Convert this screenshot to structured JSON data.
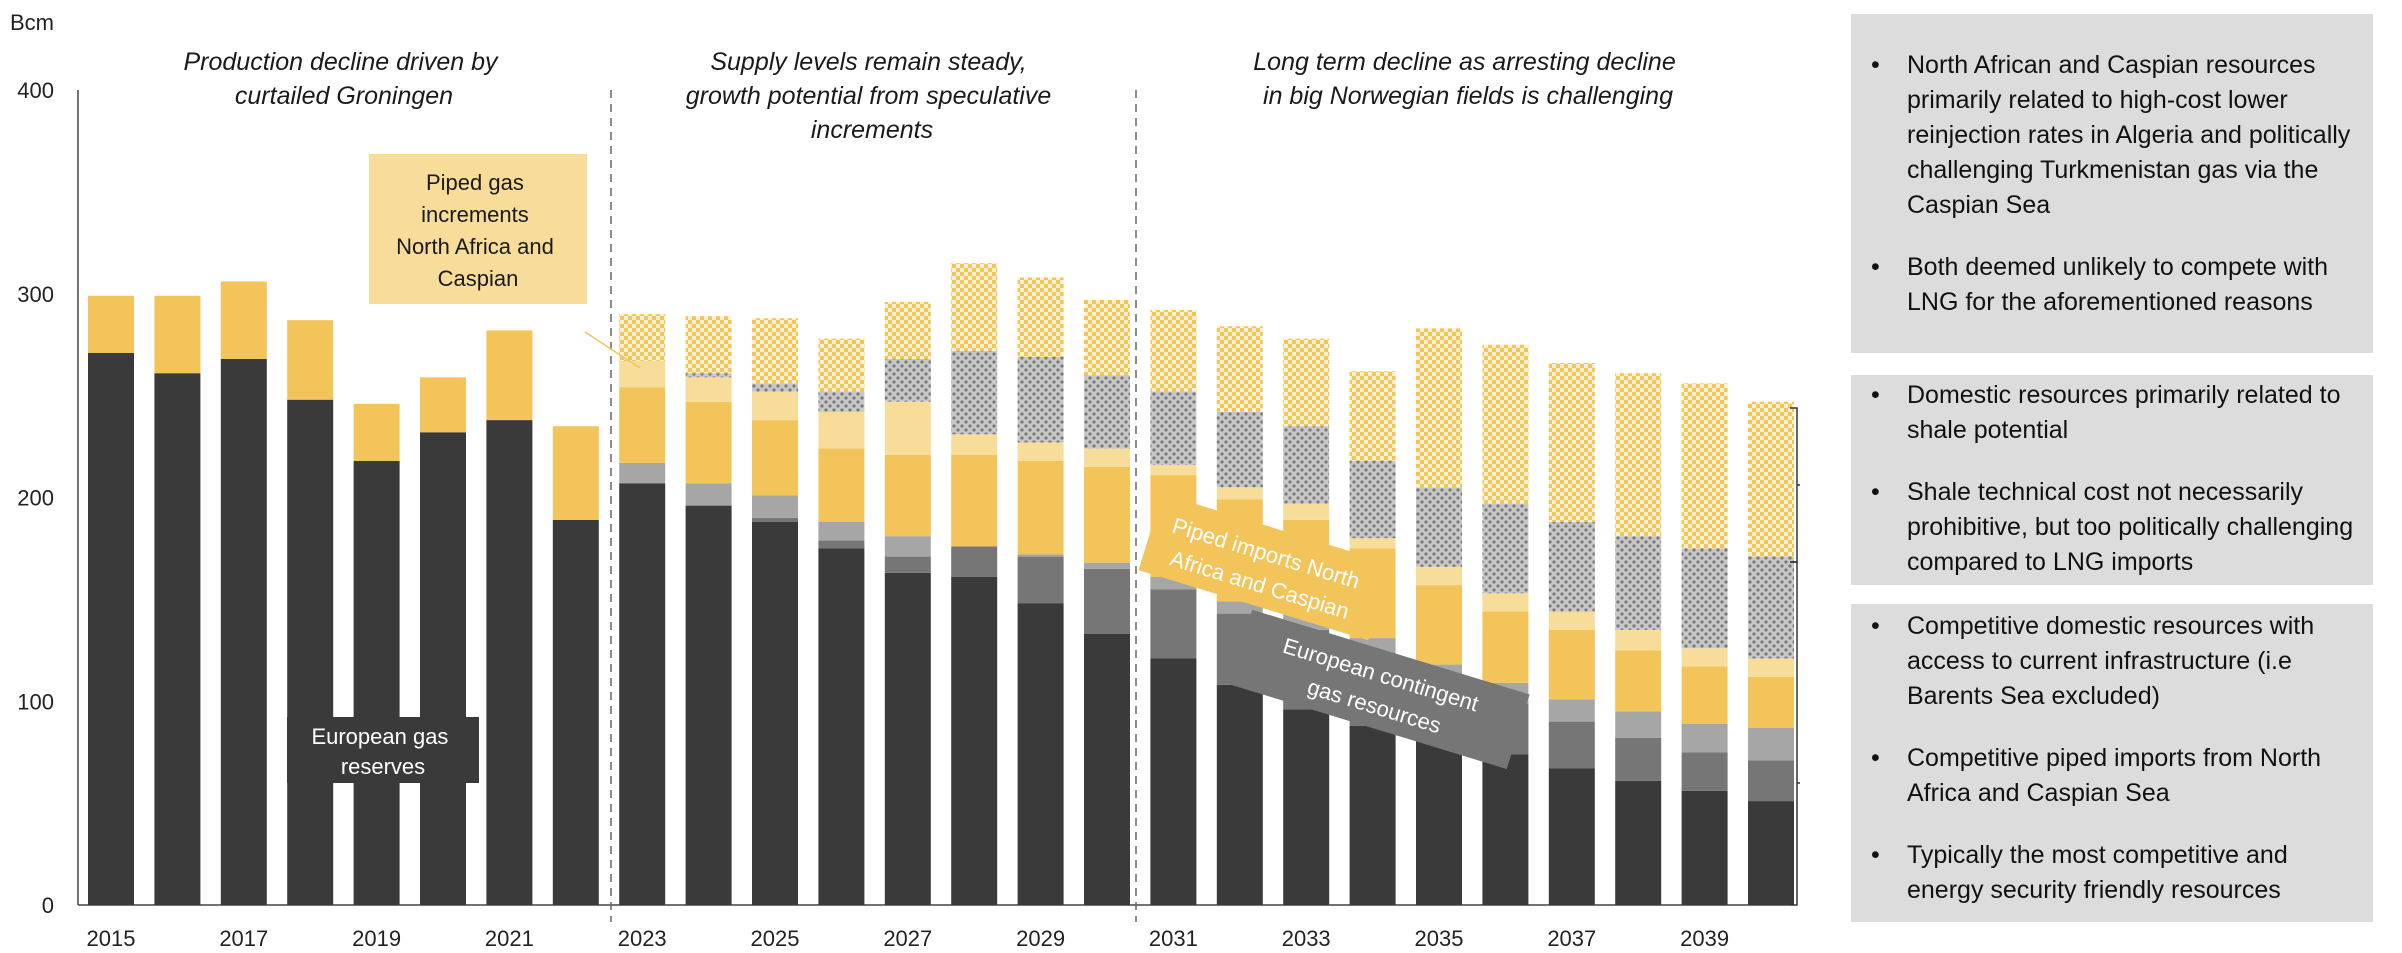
{
  "chart_data": {
    "type": "bar",
    "stacked": true,
    "ylabel": "Bcm",
    "ylim": [
      0,
      400
    ],
    "yticks": [
      0,
      100,
      200,
      300,
      400
    ],
    "xtick_labels": [
      "2015",
      "2017",
      "2019",
      "2021",
      "2023",
      "2025",
      "2027",
      "2029",
      "2031",
      "2033",
      "2035",
      "2037",
      "2039"
    ],
    "categories": [
      "2015",
      "2016",
      "2017",
      "2018",
      "2019",
      "2020",
      "2021",
      "2022",
      "2023",
      "2024",
      "2025",
      "2026",
      "2027",
      "2028",
      "2029",
      "2030",
      "2031",
      "2032",
      "2033",
      "2034",
      "2035",
      "2036",
      "2037",
      "2038",
      "2039",
      "2040"
    ],
    "series": [
      {
        "name": "European gas reserves",
        "color": "#3a3a3a",
        "pattern": "solid",
        "values": [
          271,
          261,
          268,
          248,
          218,
          232,
          238,
          189,
          207,
          196,
          188,
          175,
          163,
          161,
          148,
          133,
          121,
          108,
          96,
          88,
          81,
          74,
          67,
          61,
          56,
          51
        ]
      },
      {
        "name": "European contingent gas resources",
        "color": "#767676",
        "pattern": "solid",
        "values": [
          0,
          0,
          0,
          0,
          0,
          0,
          0,
          0,
          0,
          0,
          2,
          4,
          8,
          15,
          23,
          32,
          34,
          35,
          39,
          34,
          28,
          25,
          23,
          21,
          19,
          20
        ]
      },
      {
        "name": "",
        "color": "#a6a6a6",
        "pattern": "solid",
        "values": [
          0,
          0,
          0,
          0,
          0,
          0,
          0,
          0,
          10,
          11,
          11,
          9,
          10,
          0,
          1,
          3,
          6,
          6,
          9,
          9,
          9,
          10,
          11,
          13,
          14,
          16
        ]
      },
      {
        "name": "Piped imports North Africa and Caspian",
        "color": "#f2c45a",
        "pattern": "solid",
        "values": [
          28,
          38,
          38,
          39,
          28,
          27,
          44,
          46,
          37,
          40,
          37,
          36,
          40,
          45,
          46,
          47,
          50,
          50,
          45,
          44,
          39,
          35,
          34,
          30,
          28,
          25
        ]
      },
      {
        "name": "",
        "color": "#f8dc9a",
        "pattern": "solid",
        "values": [
          0,
          0,
          0,
          0,
          0,
          0,
          0,
          0,
          13,
          12,
          14,
          18,
          26,
          10,
          9,
          9,
          5,
          6,
          8,
          5,
          9,
          9,
          9,
          10,
          9,
          9
        ]
      },
      {
        "name": "",
        "color": "#a6a6a6",
        "pattern": "dotted",
        "values": [
          0,
          0,
          0,
          0,
          0,
          0,
          0,
          0,
          0,
          2,
          4,
          10,
          21,
          41,
          42,
          36,
          36,
          37,
          38,
          38,
          39,
          44,
          44,
          46,
          49,
          50
        ]
      },
      {
        "name": "",
        "color": "#f2c45a",
        "pattern": "checker",
        "values": [
          0,
          0,
          0,
          0,
          0,
          0,
          0,
          0,
          23,
          28,
          32,
          26,
          28,
          43,
          39,
          37,
          40,
          42,
          43,
          44,
          78,
          78,
          78,
          80,
          81,
          76
        ]
      }
    ],
    "phases": [
      {
        "text": [
          "Production decline driven by",
          "curtailed Groningen"
        ]
      },
      {
        "text": [
          "Supply levels remain steady,",
          "growth potential from speculative",
          "increments"
        ]
      },
      {
        "text": [
          "Long term decline as arresting decline",
          "in big Norwegian fields is challenging"
        ]
      }
    ],
    "callouts": {
      "piped_gas_increments": [
        "Piped gas",
        "increments",
        "North Africa and",
        "Caspian"
      ],
      "european_gas_reserves": [
        "European gas",
        "reserves"
      ],
      "piped_imports": [
        "Piped imports North",
        "Africa and Caspian"
      ],
      "contingent": [
        "European contingent",
        "gas resources"
      ]
    }
  },
  "side_panels": [
    {
      "bullets": [
        "North African and Caspian resources primarily related to high-cost lower reinjection rates in Algeria and politically challenging Turkmenistan gas via the Caspian Sea",
        "Both deemed unlikely to compete with LNG for the aforementioned reasons"
      ]
    },
    {
      "bullets": [
        "Domestic resources primarily related to shale potential",
        "Shale technical cost not necessarily prohibitive, but too politically challenging compared to LNG imports"
      ]
    },
    {
      "bullets": [
        "Competitive domestic resources with access to current infrastructure (i.e Barents Sea excluded)",
        "Competitive piped imports from North Africa and Caspian Sea",
        "Typically the most competitive and energy security friendly resources"
      ]
    }
  ],
  "bullet_symbol": "•"
}
